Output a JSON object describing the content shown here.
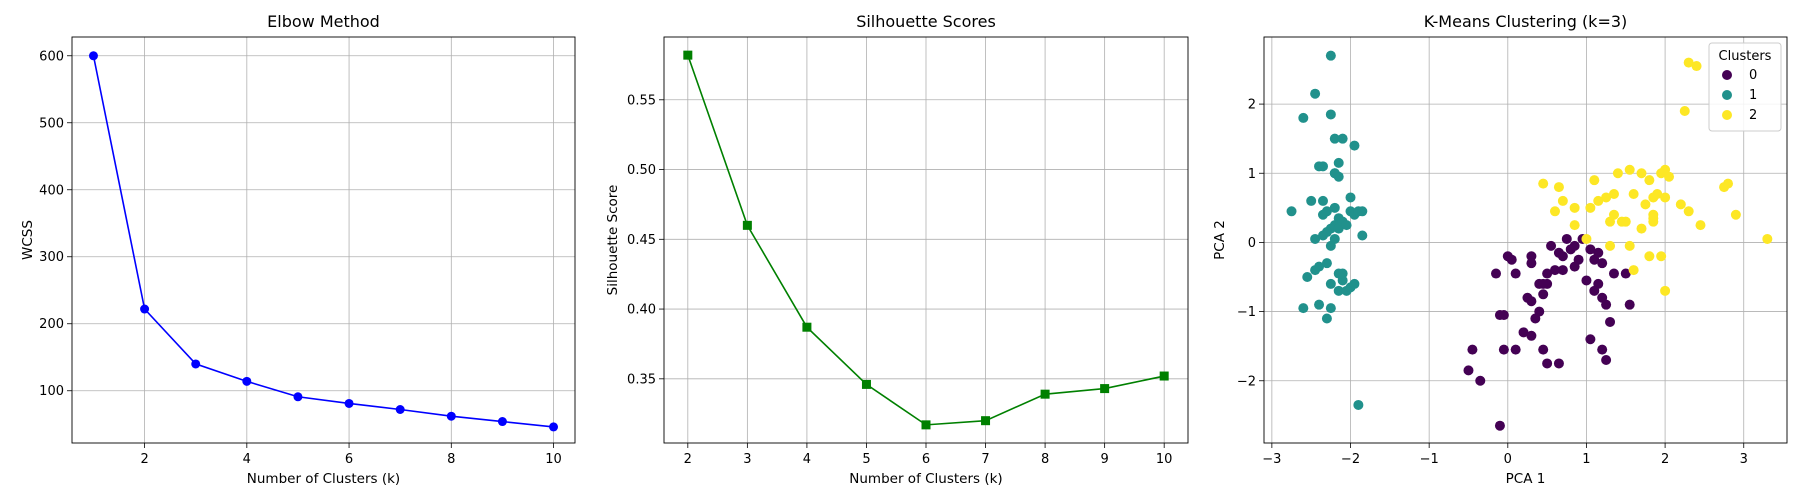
{
  "chart_data": [
    {
      "type": "line",
      "title": "Elbow Method",
      "xlabel": "Number of Clusters (k)",
      "ylabel": "WCSS",
      "xlim": [
        0.58,
        10.42
      ],
      "ylim": [
        22,
        628
      ],
      "xticks": [
        2,
        4,
        6,
        8,
        10
      ],
      "yticks": [
        100,
        200,
        300,
        400,
        500,
        600
      ],
      "grid": true,
      "series": [
        {
          "color": "#0000ff",
          "marker": "circle",
          "x": [
            1,
            2,
            3,
            4,
            5,
            6,
            7,
            8,
            9,
            10
          ],
          "y": [
            600,
            222,
            140,
            114,
            91,
            81,
            72,
            62,
            54,
            46
          ]
        }
      ]
    },
    {
      "type": "line",
      "title": "Silhouette Scores",
      "xlabel": "Number of Clusters (k)",
      "ylabel": "Silhouette Score",
      "xlim": [
        1.6,
        10.4
      ],
      "ylim": [
        0.304,
        0.595
      ],
      "xticks": [
        2,
        3,
        4,
        5,
        6,
        7,
        8,
        9,
        10
      ],
      "yticks": [
        0.35,
        0.4,
        0.45,
        0.5,
        0.55
      ],
      "grid": true,
      "series": [
        {
          "color": "#008000",
          "marker": "square",
          "x": [
            2,
            3,
            4,
            5,
            6,
            7,
            8,
            9,
            10
          ],
          "y": [
            0.582,
            0.46,
            0.387,
            0.346,
            0.317,
            0.32,
            0.339,
            0.343,
            0.352
          ]
        }
      ]
    },
    {
      "type": "scatter",
      "title": "K-Means Clustering (k=3)",
      "xlabel": "PCA 1",
      "ylabel": "PCA 2",
      "xlim": [
        -3.1,
        3.55
      ],
      "ylim": [
        -2.9,
        2.97
      ],
      "xticks": [
        -3,
        -2,
        -1,
        0,
        1,
        2,
        3
      ],
      "yticks": [
        -2,
        -1,
        0,
        1,
        2
      ],
      "grid": true,
      "legend": {
        "title": "Clusters",
        "placement": "top-right"
      },
      "series": [
        {
          "name": "0",
          "color": "#440154",
          "points": [
            [
              -0.1,
              -2.65
            ],
            [
              -0.45,
              -1.55
            ],
            [
              -0.5,
              -1.85
            ],
            [
              -0.35,
              -2.0
            ],
            [
              -0.05,
              -1.55
            ],
            [
              0.1,
              -1.55
            ],
            [
              0.2,
              -1.3
            ],
            [
              0.3,
              -1.35
            ],
            [
              0.35,
              -1.1
            ],
            [
              0.4,
              -1.0
            ],
            [
              0.4,
              -0.6
            ],
            [
              0.25,
              -0.8
            ],
            [
              0.3,
              -0.85
            ],
            [
              0.45,
              -0.75
            ],
            [
              0.5,
              -0.6
            ],
            [
              0.45,
              -1.55
            ],
            [
              0.5,
              -1.75
            ],
            [
              0.65,
              -1.75
            ],
            [
              0.0,
              -0.2
            ],
            [
              0.05,
              -0.25
            ],
            [
              0.1,
              -0.45
            ],
            [
              0.3,
              -0.2
            ],
            [
              0.3,
              -0.3
            ],
            [
              0.55,
              -0.05
            ],
            [
              0.65,
              -0.15
            ],
            [
              0.7,
              -0.2
            ],
            [
              0.8,
              -0.1
            ],
            [
              0.85,
              -0.05
            ],
            [
              0.9,
              -0.25
            ],
            [
              0.75,
              0.05
            ],
            [
              0.7,
              -0.4
            ],
            [
              0.6,
              -0.4
            ],
            [
              0.5,
              -0.45
            ],
            [
              0.45,
              -0.6
            ],
            [
              -0.15,
              -0.45
            ],
            [
              -0.1,
              -1.05
            ],
            [
              -0.05,
              -1.05
            ],
            [
              0.85,
              -0.35
            ],
            [
              0.95,
              0.05
            ],
            [
              1.0,
              -0.55
            ],
            [
              1.05,
              -0.1
            ],
            [
              1.1,
              -0.25
            ],
            [
              1.15,
              -0.6
            ],
            [
              1.2,
              -0.3
            ],
            [
              1.2,
              -0.8
            ],
            [
              1.25,
              -0.9
            ],
            [
              1.3,
              -1.15
            ],
            [
              1.05,
              -1.4
            ],
            [
              1.2,
              -1.55
            ],
            [
              1.25,
              -1.7
            ],
            [
              1.35,
              -0.45
            ],
            [
              1.5,
              -0.45
            ],
            [
              1.55,
              -0.9
            ],
            [
              1.1,
              -0.7
            ],
            [
              1.15,
              -0.15
            ]
          ]
        },
        {
          "name": "1",
          "color": "#21918c",
          "points": [
            [
              -2.75,
              0.45
            ],
            [
              -2.6,
              1.8
            ],
            [
              -2.55,
              -0.5
            ],
            [
              -2.5,
              0.6
            ],
            [
              -2.45,
              2.15
            ],
            [
              -2.4,
              1.1
            ],
            [
              -2.35,
              1.1
            ],
            [
              -2.3,
              -1.1
            ],
            [
              -2.25,
              -0.95
            ],
            [
              -2.35,
              0.6
            ],
            [
              -2.3,
              0.45
            ],
            [
              -2.2,
              0.5
            ],
            [
              -2.15,
              0.35
            ],
            [
              -2.2,
              0.25
            ],
            [
              -2.25,
              0.2
            ],
            [
              -2.3,
              0.15
            ],
            [
              -2.2,
              0.05
            ],
            [
              -2.15,
              0.2
            ],
            [
              -2.1,
              0.3
            ],
            [
              -2.05,
              0.25
            ],
            [
              -2.0,
              0.45
            ],
            [
              -1.95,
              0.4
            ],
            [
              -1.9,
              0.45
            ],
            [
              -1.85,
              0.45
            ],
            [
              -2.0,
              0.65
            ],
            [
              -2.15,
              0.95
            ],
            [
              -2.2,
              1.0
            ],
            [
              -2.15,
              1.15
            ],
            [
              -2.2,
              1.5
            ],
            [
              -2.1,
              1.5
            ],
            [
              -2.25,
              1.85
            ],
            [
              -1.95,
              1.4
            ],
            [
              -2.25,
              2.7
            ],
            [
              -1.9,
              -2.35
            ],
            [
              -1.85,
              0.1
            ],
            [
              -2.45,
              0.05
            ],
            [
              -2.35,
              0.1
            ],
            [
              -2.6,
              -0.95
            ],
            [
              -2.4,
              -0.9
            ],
            [
              -2.4,
              -0.35
            ],
            [
              -2.3,
              -0.3
            ],
            [
              -2.25,
              -0.6
            ],
            [
              -2.15,
              -0.7
            ],
            [
              -2.1,
              -0.55
            ],
            [
              -2.05,
              -0.7
            ],
            [
              -2.0,
              -0.65
            ],
            [
              -1.95,
              -0.6
            ],
            [
              -2.15,
              -0.45
            ],
            [
              -2.1,
              -0.45
            ],
            [
              -2.45,
              -0.4
            ],
            [
              -2.25,
              -0.05
            ],
            [
              -2.2,
              1.0
            ],
            [
              -2.35,
              0.4
            ]
          ]
        },
        {
          "name": "2",
          "color": "#fde725",
          "points": [
            [
              0.45,
              0.85
            ],
            [
              0.6,
              0.45
            ],
            [
              0.65,
              0.8
            ],
            [
              0.7,
              0.6
            ],
            [
              0.85,
              0.25
            ],
            [
              0.85,
              0.5
            ],
            [
              1.0,
              0.05
            ],
            [
              1.05,
              0.5
            ],
            [
              1.1,
              0.9
            ],
            [
              1.25,
              0.65
            ],
            [
              1.3,
              0.3
            ],
            [
              1.35,
              0.7
            ],
            [
              1.35,
              0.4
            ],
            [
              1.4,
              1.0
            ],
            [
              1.45,
              0.3
            ],
            [
              1.5,
              0.3
            ],
            [
              1.55,
              1.05
            ],
            [
              1.6,
              0.7
            ],
            [
              1.7,
              1.0
            ],
            [
              1.75,
              0.55
            ],
            [
              1.8,
              0.9
            ],
            [
              1.85,
              0.4
            ],
            [
              1.85,
              0.3
            ],
            [
              1.85,
              0.65
            ],
            [
              1.9,
              0.7
            ],
            [
              1.95,
              1.0
            ],
            [
              2.0,
              1.05
            ],
            [
              2.0,
              0.65
            ],
            [
              2.05,
              0.95
            ],
            [
              2.2,
              0.55
            ],
            [
              2.25,
              1.9
            ],
            [
              2.3,
              0.45
            ],
            [
              2.3,
              2.6
            ],
            [
              2.4,
              2.55
            ],
            [
              2.45,
              0.25
            ],
            [
              2.75,
              0.8
            ],
            [
              2.8,
              0.85
            ],
            [
              2.9,
              0.4
            ],
            [
              3.3,
              0.05
            ],
            [
              1.8,
              -0.2
            ],
            [
              1.95,
              -0.2
            ],
            [
              2.0,
              -0.7
            ],
            [
              1.6,
              -0.4
            ],
            [
              1.3,
              -0.05
            ],
            [
              1.55,
              -0.05
            ],
            [
              1.85,
              0.35
            ],
            [
              1.7,
              0.2
            ],
            [
              1.15,
              0.6
            ]
          ]
        }
      ]
    }
  ]
}
